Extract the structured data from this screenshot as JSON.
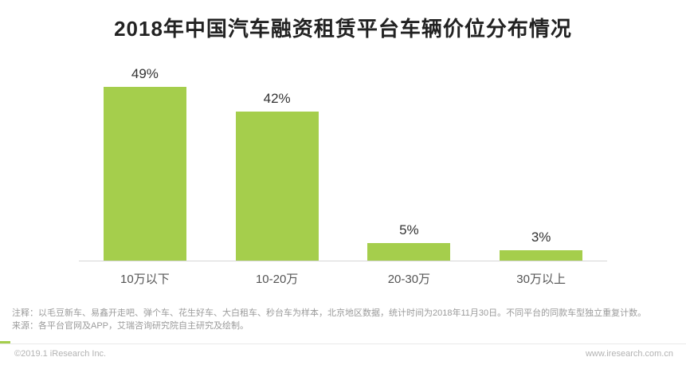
{
  "title": "2018年中国汽车融资租赁平台车辆价位分布情况",
  "chart_data": {
    "type": "bar",
    "title": "2018年中国汽车融资租赁平台车辆价位分布情况",
    "categories": [
      "10万以下",
      "10-20万",
      "20-30万",
      "30万以上"
    ],
    "values": [
      49,
      42,
      5,
      3
    ],
    "value_suffix": "%",
    "xlabel": "",
    "ylabel": "",
    "ylim": [
      0,
      50
    ],
    "grid": false,
    "legend": "none"
  },
  "notes": {
    "line1": "注释：以毛豆新车、易鑫开走吧、弹个车、花生好车、大白租车、秒台车为样本，北京地区数据，统计时间为2018年11月30日。不同平台的同款车型独立重复计数。",
    "line2": "来源：各平台官网及APP，艾瑞咨询研究院自主研究及绘制。"
  },
  "footer": {
    "copyright": "©2019.1 iResearch Inc.",
    "website": "www.iresearch.com.cn"
  },
  "colors": {
    "bar": "#a5ce4c",
    "logo_mark": "#a5ce4c"
  }
}
